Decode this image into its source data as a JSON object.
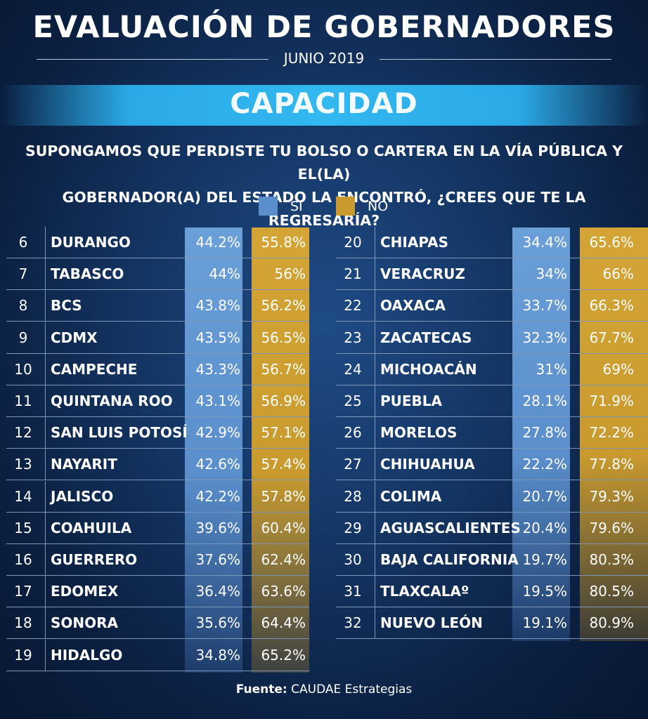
{
  "header": {
    "title": "EVALUACIÓN DE GOBERNADORES",
    "date": "JUNIO 2019"
  },
  "banner": {
    "label": "CAPACIDAD"
  },
  "question": {
    "line1": "SUPONGAMOS QUE PERDISTE TU BOLSO O CARTERA EN LA VÍA PÚBLICA Y EL(LA)",
    "line2": "GOBERNADOR(A) DEL ESTADO LA ENCONTRÓ, ¿CREES QUE TE LA REGRESARÍA?"
  },
  "legend": [
    {
      "label": "SI",
      "color": "#5b8fcc"
    },
    {
      "label": "NO",
      "color": "#c99a2e"
    }
  ],
  "colors": {
    "si": "#5b8fcc",
    "no": "#c99a2e",
    "banner": "#33b8f0"
  },
  "table_left": [
    {
      "rank": "6",
      "state": "DURANGO",
      "si": "44.2%",
      "no": "55.8%"
    },
    {
      "rank": "7",
      "state": "TABASCO",
      "si": "44%",
      "no": "56%"
    },
    {
      "rank": "8",
      "state": "BCS",
      "si": "43.8%",
      "no": "56.2%"
    },
    {
      "rank": "9",
      "state": "CDMX",
      "si": "43.5%",
      "no": "56.5%"
    },
    {
      "rank": "10",
      "state": "CAMPECHE",
      "si": "43.3%",
      "no": "56.7%"
    },
    {
      "rank": "11",
      "state": "QUINTANA ROO",
      "si": "43.1%",
      "no": "56.9%"
    },
    {
      "rank": "12",
      "state": "SAN LUIS POTOSÍ",
      "si": "42.9%",
      "no": "57.1%"
    },
    {
      "rank": "13",
      "state": "NAYARIT",
      "si": "42.6%",
      "no": "57.4%"
    },
    {
      "rank": "14",
      "state": "JALISCO",
      "si": "42.2%",
      "no": "57.8%"
    },
    {
      "rank": "15",
      "state": "COAHUILA",
      "si": "39.6%",
      "no": "60.4%"
    },
    {
      "rank": "16",
      "state": "GUERRERO",
      "si": "37.6%",
      "no": "62.4%"
    },
    {
      "rank": "17",
      "state": "EDOMEX",
      "si": "36.4%",
      "no": "63.6%"
    },
    {
      "rank": "18",
      "state": "SONORA",
      "si": "35.6%",
      "no": "64.4%"
    },
    {
      "rank": "19",
      "state": "HIDALGO",
      "si": "34.8%",
      "no": "65.2%"
    }
  ],
  "table_right": [
    {
      "rank": "20",
      "state": "CHIAPAS",
      "si": "34.4%",
      "no": "65.6%"
    },
    {
      "rank": "21",
      "state": "VERACRUZ",
      "si": "34%",
      "no": "66%"
    },
    {
      "rank": "22",
      "state": "OAXACA",
      "si": "33.7%",
      "no": "66.3%"
    },
    {
      "rank": "23",
      "state": "ZACATECAS",
      "si": "32.3%",
      "no": "67.7%"
    },
    {
      "rank": "24",
      "state": "MICHOACÁN",
      "si": "31%",
      "no": "69%"
    },
    {
      "rank": "25",
      "state": "PUEBLA",
      "si": "28.1%",
      "no": "71.9%"
    },
    {
      "rank": "26",
      "state": "MORELOS",
      "si": "27.8%",
      "no": "72.2%"
    },
    {
      "rank": "27",
      "state": "CHIHUAHUA",
      "si": "22.2%",
      "no": "77.8%"
    },
    {
      "rank": "28",
      "state": "COLIMA",
      "si": "20.7%",
      "no": "79.3%"
    },
    {
      "rank": "29",
      "state": "AGUASCALIENTES",
      "si": "20.4%",
      "no": "79.6%"
    },
    {
      "rank": "30",
      "state": "BAJA CALIFORNIA",
      "si": "19.7%",
      "no": "80.3%"
    },
    {
      "rank": "31",
      "state": "TLAXCALAº",
      "si": "19.5%",
      "no": "80.5%"
    },
    {
      "rank": "32",
      "state": "NUEVO LEÓN",
      "si": "19.1%",
      "no": "80.9%"
    }
  ],
  "footer": {
    "source_label": "Fuente:",
    "source_value": "CAUDAE Estrategias"
  }
}
